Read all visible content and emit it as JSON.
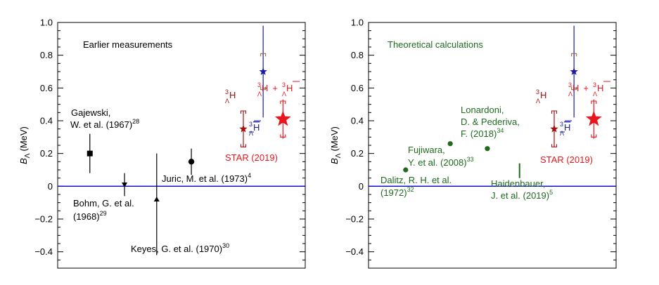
{
  "colors": {
    "black": "#000000",
    "blue": "#1a1aa6",
    "zero_line": "#0000cc",
    "red": "#e8171e",
    "darkred": "#a50f0f",
    "green": "#1e6b1e",
    "dotted": "#a06a40"
  },
  "chart_data": [
    {
      "type": "scatter",
      "title": "Earlier measurements",
      "ylabel": "B",
      "ylabel_sub": "Λ",
      "ylabel_unit": "(MeV)",
      "ylim": [
        -0.5,
        1.0
      ],
      "yticks": [
        "−0.4",
        "−0.2",
        "0",
        "0.2",
        "0.4",
        "0.6",
        "0.8",
        "1.0"
      ],
      "ytick_values": [
        -0.4,
        -0.2,
        0,
        0.2,
        0.4,
        0.6,
        0.8,
        1.0
      ],
      "grid": false,
      "reference_line": 0,
      "points": [
        {
          "label": "Gajewski, W. et al. (1967)",
          "ref": "28",
          "marker": "square",
          "color": "black",
          "x": 0.13,
          "y": 0.2,
          "err_lo": 0.12,
          "err_hi": 0.12
        },
        {
          "label": "Bohm, G. et al. (1968)",
          "ref": "29",
          "marker": "triangle-down",
          "color": "black",
          "x": 0.27,
          "y": 0.01,
          "err_lo": 0.07,
          "err_hi": 0.07
        },
        {
          "label": "Keyes, G. et al. (1970)",
          "ref": "30",
          "marker": "triangle-up",
          "color": "black",
          "x": 0.4,
          "y": -0.08,
          "err_lo": 0.34,
          "err_hi": 0.28
        },
        {
          "label": "Juric, M. et al. (1973)",
          "ref": "4",
          "marker": "circle",
          "color": "black",
          "x": 0.54,
          "y": 0.15,
          "err_lo": 0.08,
          "err_hi": 0.08
        },
        {
          "label": "H-bar",
          "marker": "star",
          "color": "blue",
          "x": 0.83,
          "y": 0.7,
          "err_lo": 0.28,
          "err_hi": 0.28,
          "sys_lo": 0.11,
          "sys_hi": 0.11
        },
        {
          "label": "H",
          "marker": "star",
          "color": "darkred",
          "x": 0.75,
          "y": 0.35,
          "err_lo": 0.11,
          "err_hi": 0.11,
          "sys_lo": 0.11,
          "sys_hi": 0.11
        },
        {
          "label": "H + H-bar",
          "marker": "star-large",
          "color": "red",
          "x": 0.91,
          "y": 0.41,
          "err_lo": 0.12,
          "err_hi": 0.12,
          "sys_lo": 0.11,
          "sys_hi": 0.11
        }
      ],
      "annotations": {
        "gajewski": [
          "Gajewski,",
          "W. et al. (1967)",
          "28"
        ],
        "bohm": [
          "Bohm, G. et al.",
          "(1968)",
          "29"
        ],
        "keyes": [
          "Keyes, G. et al. (1970)",
          "30"
        ],
        "juric": [
          "Juric, M. et al. (1973)",
          "4"
        ],
        "star": "STAR (2019)",
        "hyp_H": {
          "sup": "3",
          "sub": "Λ",
          "main": "H"
        },
        "hyp_Hbar": {
          "sup": "3",
          "sub": "Λ",
          "main": "H"
        },
        "hyp_plus": "+"
      }
    },
    {
      "type": "scatter",
      "title": "Theoretical calculations",
      "ylabel": "B",
      "ylabel_sub": "Λ",
      "ylabel_unit": "(MeV)",
      "ylim": [
        -0.5,
        1.0
      ],
      "yticks": [
        "−0.4",
        "−0.2",
        "0",
        "0.2",
        "0.4",
        "0.6",
        "0.8",
        "1.0"
      ],
      "ytick_values": [
        -0.4,
        -0.2,
        0,
        0.2,
        0.4,
        0.6,
        0.8,
        1.0
      ],
      "grid": false,
      "reference_line": 0,
      "points": [
        {
          "label": "Dalitz, R. H. et al. (1972)",
          "ref": "32",
          "marker": "circle-small",
          "color": "green",
          "x": 0.15,
          "y": 0.1
        },
        {
          "label": "Fujiwara, Y. et al. (2008)",
          "ref": "33",
          "marker": "circle-small",
          "color": "green",
          "x": 0.33,
          "y": 0.26
        },
        {
          "label": "Lonardoni, D. & Pederiva, F. (2018)",
          "ref": "34",
          "marker": "circle-small",
          "color": "green",
          "x": 0.48,
          "y": 0.23
        },
        {
          "label": "Haidenbauer, J. et al. (2019)",
          "ref": "5",
          "marker": "band",
          "color": "green",
          "x": 0.61,
          "y": 0.095,
          "err_lo": 0.045,
          "err_hi": 0.045
        },
        {
          "label": "H-bar",
          "marker": "star",
          "color": "blue",
          "x": 0.83,
          "y": 0.7,
          "err_lo": 0.28,
          "err_hi": 0.28,
          "sys_lo": 0.11,
          "sys_hi": 0.11
        },
        {
          "label": "H",
          "marker": "star",
          "color": "darkred",
          "x": 0.75,
          "y": 0.35,
          "err_lo": 0.11,
          "err_hi": 0.11,
          "sys_lo": 0.11,
          "sys_hi": 0.11
        },
        {
          "label": "H + H-bar",
          "marker": "star-large",
          "color": "red",
          "x": 0.91,
          "y": 0.41,
          "err_lo": 0.12,
          "err_hi": 0.12,
          "sys_lo": 0.11,
          "sys_hi": 0.11
        }
      ],
      "annotations": {
        "lonardoni": [
          "Lonardoni,",
          "D. & Pederiva,",
          "F. (2018)",
          "34"
        ],
        "fujiwara": [
          "Fujiwara,",
          "Y. et al. (2008)",
          "33"
        ],
        "dalitz": [
          "Dalitz, R. H. et al.",
          "(1972)",
          "32"
        ],
        "haidenbauer": [
          "Haidenbauer,",
          "J. et al. (2019)",
          "5"
        ],
        "star": "STAR (2019)",
        "hyp_H": {
          "sup": "3",
          "sub": "Λ",
          "main": "H"
        },
        "hyp_Hbar": {
          "sup": "3",
          "sub": "Λ",
          "main": "H"
        },
        "hyp_plus": "+"
      }
    }
  ]
}
